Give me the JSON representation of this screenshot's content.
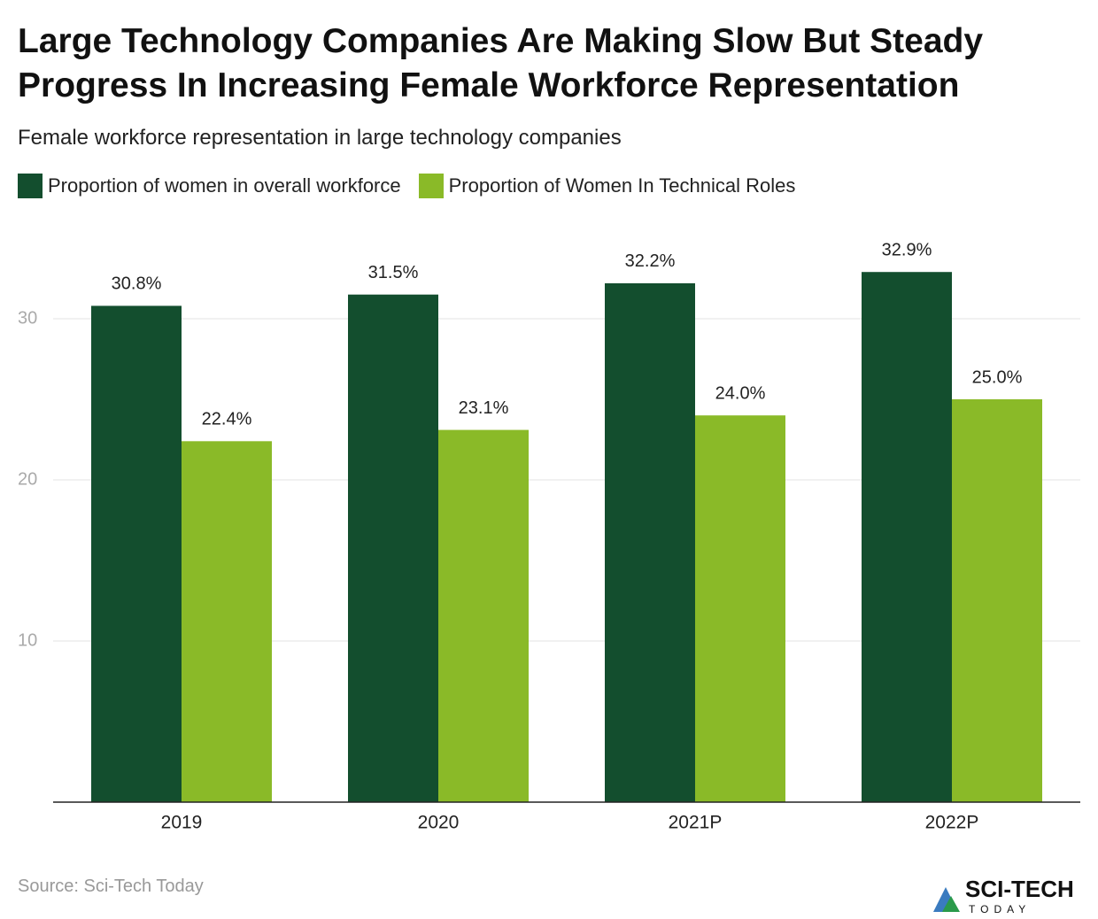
{
  "chart_data": {
    "type": "bar",
    "title": "Large Technology Companies Are Making Slow But Steady Progress In Increasing Female Workforce Representation",
    "subtitle": "Female workforce representation in large technology companies",
    "categories": [
      "2019",
      "2020",
      "2021P",
      "2022P"
    ],
    "series": [
      {
        "name": "Proportion of women in overall workforce",
        "color": "#134e2e",
        "values": [
          30.8,
          31.5,
          32.2,
          32.9
        ],
        "value_labels": [
          "30.8%",
          "31.5%",
          "32.2%",
          "32.9%"
        ]
      },
      {
        "name": "Proportion of Women In Technical Roles",
        "color": "#8aba28",
        "values": [
          22.4,
          23.1,
          24.0,
          25.0
        ],
        "value_labels": [
          "22.4%",
          "23.1%",
          "24.0%",
          "25.0%"
        ]
      }
    ],
    "ylim": [
      0,
      35
    ],
    "yticks": [
      10,
      20,
      30
    ],
    "grid": true,
    "source": "Source: Sci-Tech Today"
  },
  "logo": {
    "name": "SCI-TECH",
    "tagline": "TODAY"
  }
}
